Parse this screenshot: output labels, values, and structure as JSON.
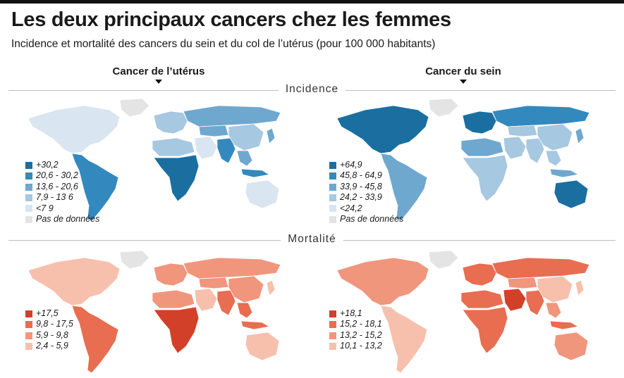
{
  "title": "Les deux principaux cancers chez les femmes",
  "subtitle": "Incidence et mortalité des cancers du sein et du col de l’utérus (pour 100 000 habitants)",
  "columns": {
    "left": "Cancer de l’utérus",
    "right": "Cancer du sein"
  },
  "sections": {
    "incidence": "Incidence",
    "mortality": "Mortalité"
  },
  "legends": {
    "uterus_incidence": [
      {
        "label": "+30,2",
        "color": "#1a6fa0"
      },
      {
        "label": "20,6 - 30,2",
        "color": "#3389bd"
      },
      {
        "label": "13,6 - 20,6",
        "color": "#6ea8cf"
      },
      {
        "label": "7,9 - 13 6",
        "color": "#a7c8e1"
      },
      {
        "label": "<7 9",
        "color": "#d9e5f0"
      },
      {
        "label": "Pas de données",
        "color": "#e4e4e4"
      }
    ],
    "breast_incidence": [
      {
        "label": "+64,9",
        "color": "#1a6fa0"
      },
      {
        "label": "45,8 - 64,9",
        "color": "#3389bd"
      },
      {
        "label": "33,9 - 45,8",
        "color": "#6ea8cf"
      },
      {
        "label": "24,2 - 33,9",
        "color": "#a7c8e1"
      },
      {
        "label": "<24,2",
        "color": "#d9e5f0"
      },
      {
        "label": "Pas de données",
        "color": "#e4e4e4"
      }
    ],
    "uterus_mortality": [
      {
        "label": "+17,5",
        "color": "#d2402a"
      },
      {
        "label": "9,8 - 17,5",
        "color": "#e86d51"
      },
      {
        "label": "5,9 - 9,8",
        "color": "#f0967d"
      },
      {
        "label": "2,4 - 5,9",
        "color": "#f7c0ad"
      }
    ],
    "breast_mortality": [
      {
        "label": "+18,1",
        "color": "#d2402a"
      },
      {
        "label": "15,2 - 18,1",
        "color": "#e86d51"
      },
      {
        "label": "13,2 - 15,2",
        "color": "#f0967d"
      },
      {
        "label": "10,1 - 13,2",
        "color": "#f7c0ad"
      }
    ]
  },
  "maps": {
    "uterus_incidence": {
      "north_america": "#d9e5f0",
      "latin_america": "#3389bd",
      "greenland": "#e4e4e4",
      "europe": "#a7c8e1",
      "russia": "#6ea8cf",
      "north_africa": "#a7c8e1",
      "sub_saharan_africa": "#1a6fa0",
      "middle_east": "#d9e5f0",
      "central_asia": "#6ea8cf",
      "south_asia": "#3389bd",
      "china": "#a7c8e1",
      "southeast_asia": "#6ea8cf",
      "indonesia": "#3389bd",
      "australia": "#d9e5f0",
      "japan": "#6ea8cf"
    },
    "breast_incidence": {
      "north_america": "#1a6fa0",
      "latin_america": "#6ea8cf",
      "greenland": "#e4e4e4",
      "europe": "#1a6fa0",
      "russia": "#3389bd",
      "north_africa": "#6ea8cf",
      "sub_saharan_africa": "#a7c8e1",
      "middle_east": "#a7c8e1",
      "central_asia": "#a7c8e1",
      "south_asia": "#a7c8e1",
      "china": "#a7c8e1",
      "southeast_asia": "#a7c8e1",
      "indonesia": "#6ea8cf",
      "australia": "#1a6fa0",
      "japan": "#6ea8cf"
    },
    "uterus_mortality": {
      "north_america": "#f7c0ad",
      "latin_america": "#e86d51",
      "greenland": "#e4e4e4",
      "europe": "#f0967d",
      "russia": "#f0967d",
      "north_africa": "#f0967d",
      "sub_saharan_africa": "#d2402a",
      "middle_east": "#f7c0ad",
      "central_asia": "#f0967d",
      "south_asia": "#e86d51",
      "china": "#f0967d",
      "southeast_asia": "#e86d51",
      "indonesia": "#e86d51",
      "australia": "#f7c0ad",
      "japan": "#f7c0ad"
    },
    "breast_mortality": {
      "north_america": "#f0967d",
      "latin_america": "#f7c0ad",
      "greenland": "#e4e4e4",
      "europe": "#e86d51",
      "russia": "#e86d51",
      "north_africa": "#e86d51",
      "sub_saharan_africa": "#e86d51",
      "middle_east": "#d2402a",
      "central_asia": "#f0967d",
      "south_asia": "#e86d51",
      "china": "#f7c0ad",
      "southeast_asia": "#f0967d",
      "indonesia": "#e86d51",
      "australia": "#f0967d",
      "japan": "#f7c0ad"
    }
  }
}
